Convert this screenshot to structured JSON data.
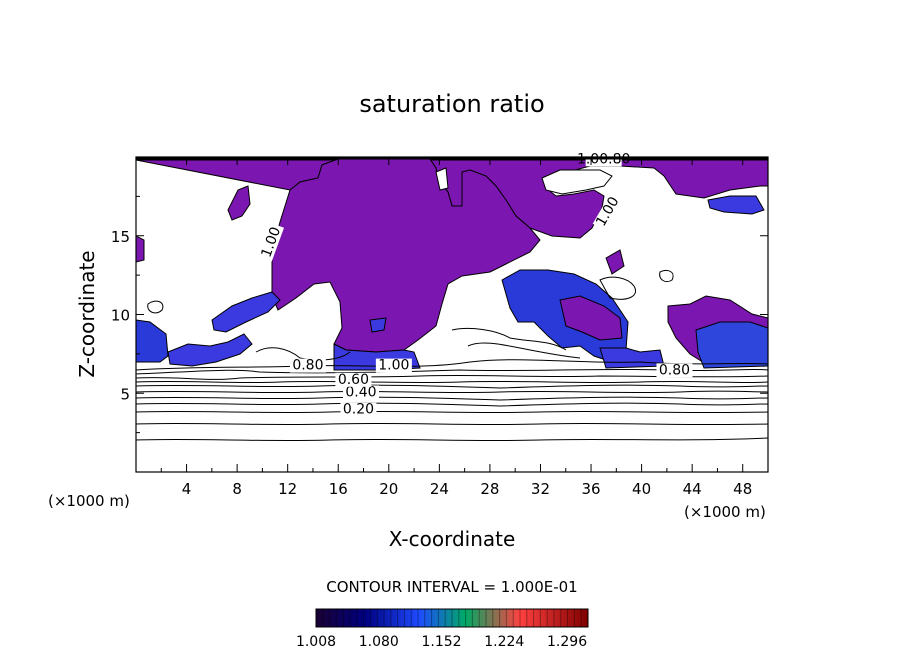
{
  "chart_data": {
    "type": "contour",
    "title": "saturation ratio",
    "xlabel": "X-coordinate",
    "ylabel": "Z-coordinate",
    "x_unit_label": "(×1000 m)",
    "z_unit_label": "(×1000 m)",
    "xlim": [
      0,
      50
    ],
    "ylim": [
      0,
      20
    ],
    "x_ticks": [
      4,
      8,
      12,
      16,
      20,
      24,
      28,
      32,
      36,
      40,
      44,
      48
    ],
    "y_ticks": [
      5,
      10,
      15
    ],
    "contour_interval_text": "CONTOUR INTERVAL = 1.000E-01",
    "contour_labels": [
      {
        "text": "0.20",
        "x": 17.6,
        "z": 3.7
      },
      {
        "text": "0.40",
        "x": 17.8,
        "z": 4.8
      },
      {
        "text": "0.60",
        "x": 17.2,
        "z": 5.6
      },
      {
        "text": "0.80",
        "x": 13.6,
        "z": 6.5
      },
      {
        "text": "0.80",
        "x": 42.6,
        "z": 6.2
      },
      {
        "text": "1.00",
        "x": 20.4,
        "z": 6.5
      },
      {
        "text": "1.00",
        "x": 11.0,
        "z": 14.5
      },
      {
        "text": "1.00",
        "x": 37.6,
        "z": 16.4
      },
      {
        "text": "1.00.80",
        "x": 37.0,
        "z": 19.6
      }
    ],
    "colorbar": {
      "min": 1.008,
      "max": 1.32,
      "tick_labels": [
        "1.008",
        "1.080",
        "1.152",
        "1.224",
        "1.296"
      ],
      "colors": [
        "#1a0033",
        "#000080",
        "#0000ff",
        "#00aa66",
        "#ff5050",
        "#800000"
      ]
    },
    "fill_colors": {
      "supersaturated": "#7b16b0",
      "highly_supersaturated": "#2a2ad8",
      "boundary": "#4b5be0"
    }
  }
}
